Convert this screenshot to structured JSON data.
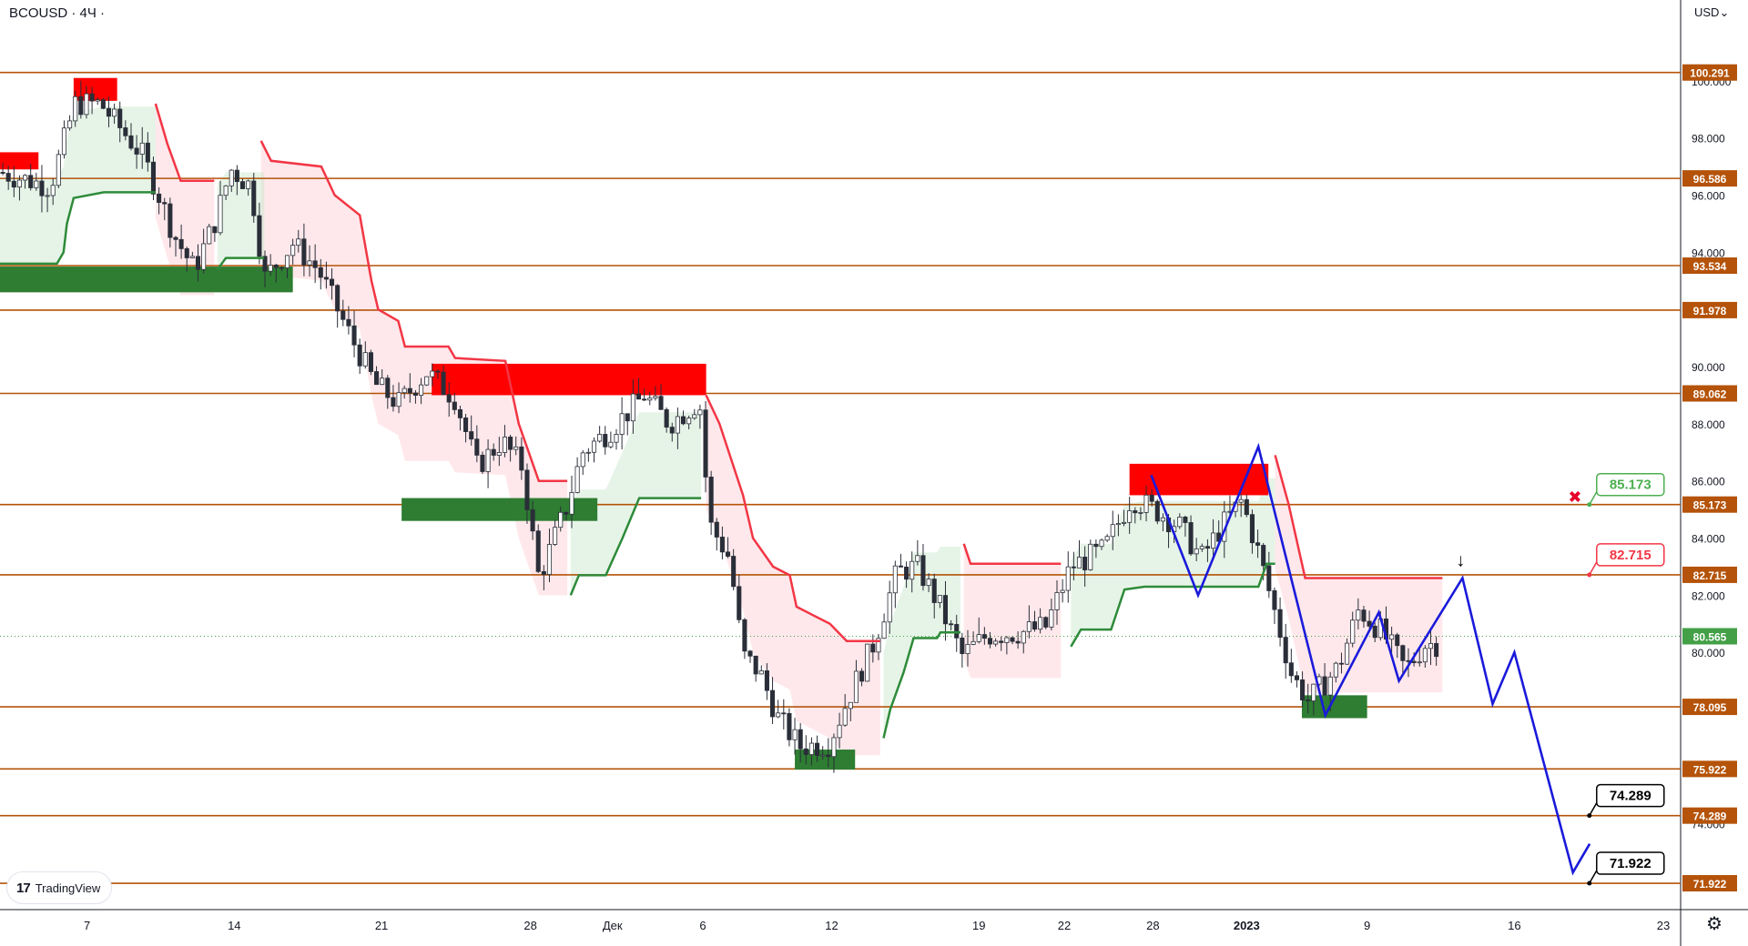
{
  "header": {
    "symbol": "BCOUSD · 4Ч ·"
  },
  "logo": {
    "text": "TradingView"
  },
  "axis": {
    "currency": "USD",
    "currency_icon": "chevron-down-icon",
    "settings_icon": "gear-icon"
  },
  "chart_data": {
    "type": "candlestick",
    "ylim": [
      71.0,
      100.6
    ],
    "y_ticks": [
      74.0,
      76.0,
      78.0,
      80.0,
      82.0,
      84.0,
      86.0,
      88.0,
      90.0,
      92.0,
      94.0,
      96.0,
      98.0,
      100.0
    ],
    "y_tick_labels": [
      "74.000",
      "76.000",
      "78.000",
      "80.000",
      "82.000",
      "84.000",
      "86.000",
      "88.000",
      "90.000",
      "92.000",
      "94.000",
      "96.000",
      "98.000",
      "100.000"
    ],
    "x_ticks": [
      {
        "label": "7",
        "t": 0.052
      },
      {
        "label": "14",
        "t": 0.14
      },
      {
        "label": "21",
        "t": 0.228
      },
      {
        "label": "28",
        "t": 0.317
      },
      {
        "label": "Дек",
        "t": 0.366
      },
      {
        "label": "6",
        "t": 0.42
      },
      {
        "label": "12",
        "t": 0.497
      },
      {
        "label": "19",
        "t": 0.585
      },
      {
        "label": "22",
        "t": 0.636
      },
      {
        "label": "28",
        "t": 0.689
      },
      {
        "label": "2023",
        "t": 0.745
      },
      {
        "label": "9",
        "t": 0.817
      },
      {
        "label": "16",
        "t": 0.905
      },
      {
        "label": "23",
        "t": 0.994
      }
    ],
    "levels": [
      {
        "value": 100.291,
        "label": "100.291"
      },
      {
        "value": 96.586,
        "label": "96.586"
      },
      {
        "value": 93.534,
        "label": "93.534"
      },
      {
        "value": 91.978,
        "label": "91.978"
      },
      {
        "value": 89.062,
        "label": "89.062"
      },
      {
        "value": 85.173,
        "label": "85.173"
      },
      {
        "value": 82.715,
        "label": "82.715"
      },
      {
        "value": 78.095,
        "label": "78.095"
      },
      {
        "value": 75.922,
        "label": "75.922"
      },
      {
        "value": 74.289,
        "label": "74.289"
      },
      {
        "value": 71.922,
        "label": "71.922"
      }
    ],
    "last_price": {
      "value": 80.565,
      "label": "80.565"
    },
    "callouts": [
      {
        "value": 85.173,
        "label": "85.173",
        "style": "green",
        "t": 0.952
      },
      {
        "value": 82.715,
        "label": "82.715",
        "style": "red",
        "t": 0.952
      },
      {
        "value": 74.289,
        "label": "74.289",
        "style": "black",
        "t": 0.952
      },
      {
        "value": 71.922,
        "label": "71.922",
        "style": "black",
        "t": 0.952
      }
    ],
    "supply_zones": [
      {
        "t0": 0.0,
        "t1": 0.023,
        "y0": 96.9,
        "y1": 97.5
      },
      {
        "t0": 0.044,
        "t1": 0.07,
        "y0": 99.3,
        "y1": 100.1
      },
      {
        "t0": 0.258,
        "t1": 0.422,
        "y0": 89.0,
        "y1": 90.1
      },
      {
        "t0": 0.675,
        "t1": 0.758,
        "y0": 85.5,
        "y1": 86.6
      }
    ],
    "demand_zones": [
      {
        "t0": 0.0,
        "t1": 0.175,
        "y0": 92.6,
        "y1": 93.5
      },
      {
        "t0": 0.24,
        "t1": 0.357,
        "y0": 84.6,
        "y1": 85.4
      },
      {
        "t0": 0.475,
        "t1": 0.511,
        "y0": 75.9,
        "y1": 76.6
      },
      {
        "t0": 0.778,
        "t1": 0.817,
        "y0": 77.7,
        "y1": 78.5
      }
    ],
    "trail_down": [
      [
        [
          0.093,
          99.2
        ],
        [
          0.1,
          97.8
        ],
        [
          0.108,
          96.5
        ],
        [
          0.128,
          96.5
        ]
      ],
      [
        [
          0.156,
          97.9
        ],
        [
          0.162,
          97.2
        ],
        [
          0.192,
          97.0
        ],
        [
          0.2,
          96.0
        ],
        [
          0.215,
          95.3
        ],
        [
          0.222,
          93.0
        ],
        [
          0.226,
          92.0
        ],
        [
          0.238,
          91.6
        ],
        [
          0.242,
          90.7
        ],
        [
          0.268,
          90.7
        ],
        [
          0.272,
          90.3
        ],
        [
          0.302,
          90.2
        ],
        [
          0.31,
          88.0
        ],
        [
          0.322,
          86.0
        ],
        [
          0.339,
          86.0
        ]
      ],
      [
        [
          0.422,
          89.0
        ],
        [
          0.43,
          88.0
        ],
        [
          0.444,
          85.5
        ],
        [
          0.45,
          84.0
        ],
        [
          0.462,
          83.0
        ],
        [
          0.472,
          82.7
        ],
        [
          0.476,
          81.6
        ],
        [
          0.496,
          81.0
        ],
        [
          0.506,
          80.4
        ],
        [
          0.526,
          80.4
        ]
      ],
      [
        [
          0.576,
          83.8
        ],
        [
          0.58,
          83.1
        ],
        [
          0.634,
          83.1
        ]
      ],
      [
        [
          0.762,
          86.9
        ],
        [
          0.77,
          85.2
        ],
        [
          0.78,
          82.6
        ],
        [
          0.862,
          82.6
        ]
      ]
    ],
    "trail_up": [
      [
        [
          0.0,
          93.6
        ],
        [
          0.034,
          93.6
        ],
        [
          0.038,
          94.0
        ],
        [
          0.04,
          95.0
        ],
        [
          0.044,
          95.9
        ],
        [
          0.062,
          96.1
        ],
        [
          0.093,
          96.1
        ]
      ],
      [
        [
          0.13,
          93.4
        ],
        [
          0.135,
          93.8
        ],
        [
          0.158,
          93.8
        ]
      ],
      [
        [
          0.341,
          82.0
        ],
        [
          0.346,
          82.7
        ],
        [
          0.362,
          82.7
        ],
        [
          0.372,
          84.0
        ],
        [
          0.382,
          85.4
        ],
        [
          0.419,
          85.4
        ]
      ],
      [
        [
          0.528,
          77.0
        ],
        [
          0.532,
          78.0
        ],
        [
          0.54,
          79.3
        ],
        [
          0.546,
          80.5
        ],
        [
          0.56,
          80.5
        ],
        [
          0.562,
          80.7
        ],
        [
          0.574,
          80.7
        ]
      ],
      [
        [
          0.64,
          80.2
        ],
        [
          0.646,
          80.8
        ],
        [
          0.664,
          80.8
        ],
        [
          0.672,
          82.2
        ],
        [
          0.684,
          82.3
        ],
        [
          0.752,
          82.3
        ],
        [
          0.757,
          83.1
        ],
        [
          0.762,
          83.1
        ]
      ]
    ],
    "candles": {
      "t_start": 0.0,
      "t_end": 0.86,
      "count": 258,
      "path": [
        [
          0.0,
          96.8
        ],
        [
          0.03,
          96.3
        ],
        [
          0.045,
          99.2
        ],
        [
          0.06,
          99.2
        ],
        [
          0.085,
          97.4
        ],
        [
          0.095,
          96.0
        ],
        [
          0.104,
          94.6
        ],
        [
          0.116,
          93.4
        ],
        [
          0.128,
          95.0
        ],
        [
          0.138,
          96.9
        ],
        [
          0.15,
          96.3
        ],
        [
          0.158,
          93.1
        ],
        [
          0.175,
          94.3
        ],
        [
          0.19,
          93.4
        ],
        [
          0.21,
          91.0
        ],
        [
          0.224,
          89.4
        ],
        [
          0.238,
          88.7
        ],
        [
          0.255,
          89.8
        ],
        [
          0.272,
          88.9
        ],
        [
          0.285,
          86.5
        ],
        [
          0.3,
          87.4
        ],
        [
          0.312,
          86.5
        ],
        [
          0.322,
          82.6
        ],
        [
          0.338,
          85.0
        ],
        [
          0.348,
          87.0
        ],
        [
          0.365,
          87.8
        ],
        [
          0.385,
          89.0
        ],
        [
          0.4,
          88.0
        ],
        [
          0.418,
          88.8
        ],
        [
          0.424,
          84.5
        ],
        [
          0.436,
          83.3
        ],
        [
          0.444,
          79.9
        ],
        [
          0.454,
          79.3
        ],
        [
          0.465,
          77.7
        ],
        [
          0.478,
          76.7
        ],
        [
          0.495,
          76.8
        ],
        [
          0.51,
          78.8
        ],
        [
          0.522,
          80.3
        ],
        [
          0.536,
          82.8
        ],
        [
          0.548,
          83.0
        ],
        [
          0.56,
          81.8
        ],
        [
          0.575,
          79.9
        ],
        [
          0.59,
          80.6
        ],
        [
          0.61,
          80.7
        ],
        [
          0.625,
          80.9
        ],
        [
          0.64,
          83.0
        ],
        [
          0.66,
          83.6
        ],
        [
          0.676,
          85.4
        ],
        [
          0.69,
          85.0
        ],
        [
          0.705,
          84.4
        ],
        [
          0.718,
          83.3
        ],
        [
          0.73,
          84.4
        ],
        [
          0.742,
          85.3
        ],
        [
          0.752,
          83.5
        ],
        [
          0.76,
          81.8
        ],
        [
          0.772,
          79.2
        ],
        [
          0.782,
          78.3
        ],
        [
          0.8,
          79.5
        ],
        [
          0.812,
          81.5
        ],
        [
          0.826,
          80.7
        ],
        [
          0.84,
          79.4
        ],
        [
          0.852,
          80.3
        ],
        [
          0.86,
          80.3
        ]
      ]
    },
    "wave": [
      [
        0.688,
        86.2
      ],
      [
        0.716,
        82.0
      ],
      [
        0.752,
        87.2
      ],
      [
        0.792,
        77.8
      ],
      [
        0.824,
        81.4
      ],
      [
        0.836,
        79.0
      ],
      [
        0.874,
        82.6
      ],
      [
        0.892,
        78.2
      ],
      [
        0.905,
        80.0
      ],
      [
        0.94,
        72.3
      ],
      [
        0.95,
        73.3
      ]
    ],
    "markers": [
      {
        "kind": "cross",
        "t": 0.942,
        "value": 85.5
      },
      {
        "kind": "arrow-down",
        "t": 0.874,
        "value": 83.2
      }
    ]
  }
}
